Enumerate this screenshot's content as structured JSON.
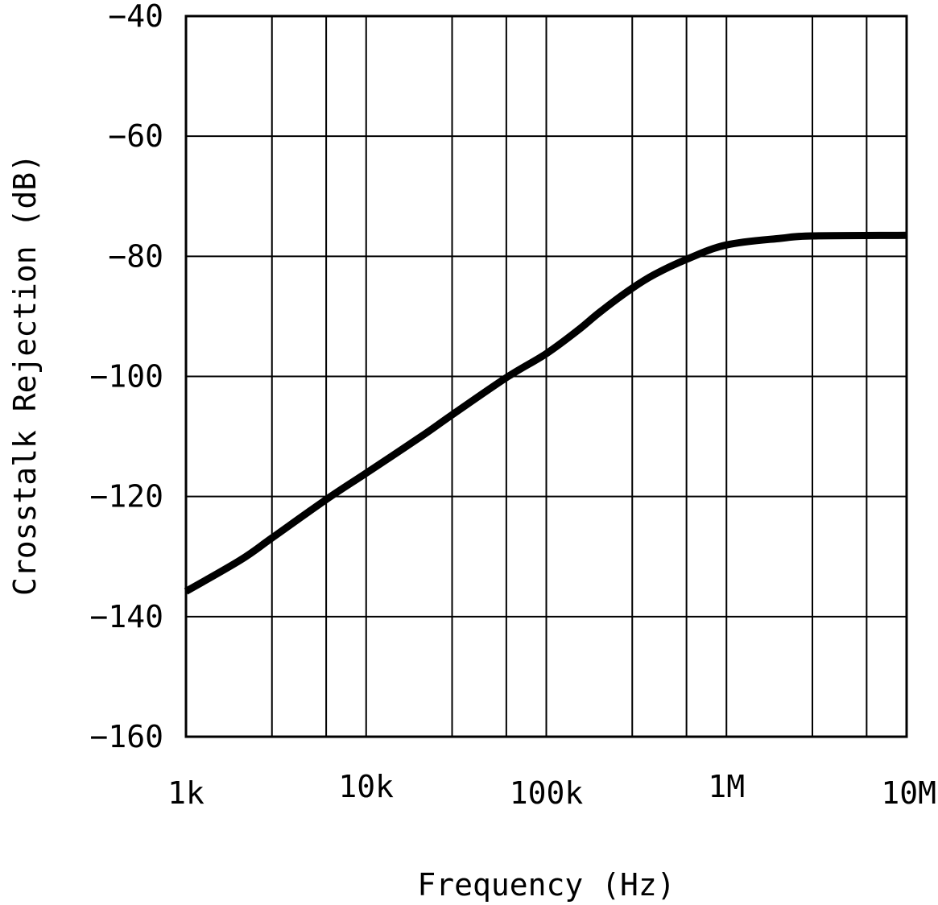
{
  "chart_data": {
    "type": "line",
    "title": "",
    "xlabel": "Frequency (Hz)",
    "ylabel": "Crosstalk Rejection (dB)",
    "x_scale": "log",
    "xlim": [
      1000,
      10000000
    ],
    "ylim": [
      -160,
      -40
    ],
    "grid": true,
    "x_ticks": [
      {
        "value": 1000,
        "label": "1k"
      },
      {
        "value": 10000,
        "label": "10k"
      },
      {
        "value": 100000,
        "label": "100k"
      },
      {
        "value": 1000000,
        "label": "1M"
      },
      {
        "value": 10000000,
        "label": "10M"
      }
    ],
    "x_minor_grid": [
      3000,
      6000,
      30000,
      60000,
      300000,
      600000,
      3000000,
      6000000
    ],
    "y_ticks": [
      {
        "value": -40,
        "label": "−40"
      },
      {
        "value": -60,
        "label": "−60"
      },
      {
        "value": -80,
        "label": "−80"
      },
      {
        "value": -100,
        "label": "−100"
      },
      {
        "value": -120,
        "label": "−120"
      },
      {
        "value": -140,
        "label": "−140"
      },
      {
        "value": -160,
        "label": "−160"
      }
    ],
    "series": [
      {
        "color": "#000000",
        "x": [
          1000,
          2000,
          3000,
          6000,
          10000,
          20000,
          30000,
          60000,
          100000,
          150000,
          200000,
          300000,
          400000,
          600000,
          1000000,
          2000000,
          3000000,
          10000000
        ],
        "y": [
          -135.8,
          -130.6,
          -126.9,
          -120.5,
          -116.1,
          -110.1,
          -106.4,
          -100.2,
          -96.2,
          -92.3,
          -89.2,
          -85.3,
          -83.0,
          -80.5,
          -78.1,
          -77.0,
          -76.6,
          -76.5
        ]
      }
    ]
  }
}
